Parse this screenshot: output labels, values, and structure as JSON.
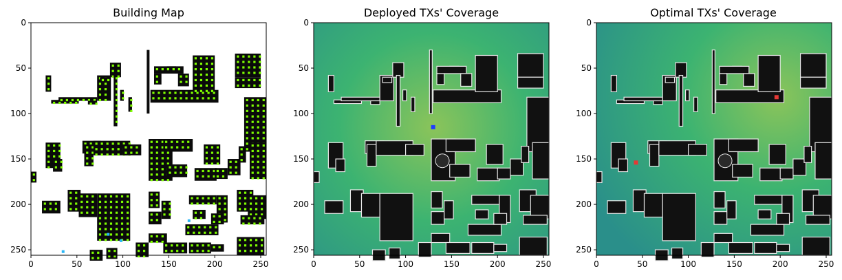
{
  "chart_data": [
    {
      "type": "heatmap",
      "title": "Building Map",
      "xlabel": "",
      "ylabel": "",
      "xlim": [
        0,
        256
      ],
      "ylim": [
        256,
        0
      ],
      "x_ticks": [
        0,
        50,
        100,
        150,
        200,
        250
      ],
      "y_ticks": [
        0,
        50,
        100,
        150,
        200,
        250
      ],
      "grid": false,
      "colors": {
        "background": "#ffffff",
        "building": "#0a0a0a",
        "candidate_site": "#7fff00",
        "highlight_site": "#29b6f6"
      }
    },
    {
      "type": "heatmap",
      "title": "Deployed TXs' Coverage",
      "xlabel": "",
      "ylabel": "",
      "xlim": [
        0,
        256
      ],
      "ylim": [
        256,
        0
      ],
      "x_ticks": [
        0,
        50,
        100,
        150,
        200,
        250
      ],
      "y_ticks": [
        0,
        50,
        100,
        150,
        200,
        250
      ],
      "grid": false,
      "colors": {
        "coverage_high": "#8bc45a",
        "coverage_mid": "#3cb371",
        "coverage_low": "#2a8f8a",
        "building": "#111111",
        "building_outline": "#e8e8e8",
        "transmitter": "#1e3cff"
      },
      "transmitters": [
        {
          "x": 130,
          "y": 115
        }
      ]
    },
    {
      "type": "heatmap",
      "title": "Optimal TXs' Coverage",
      "xlabel": "",
      "ylabel": "",
      "xlim": [
        0,
        256
      ],
      "ylim": [
        256,
        0
      ],
      "x_ticks": [
        0,
        50,
        100,
        150,
        200,
        250
      ],
      "y_ticks": [
        0,
        50,
        100,
        150,
        200,
        250
      ],
      "grid": false,
      "colors": {
        "coverage_high": "#8bc45a",
        "coverage_mid": "#3cb371",
        "coverage_low": "#2a8f8a",
        "building": "#111111",
        "building_outline": "#e8e8e8",
        "transmitter": "#e53935"
      },
      "transmitters": [
        {
          "x": 196,
          "y": 82
        },
        {
          "x": 43,
          "y": 154
        }
      ]
    }
  ]
}
